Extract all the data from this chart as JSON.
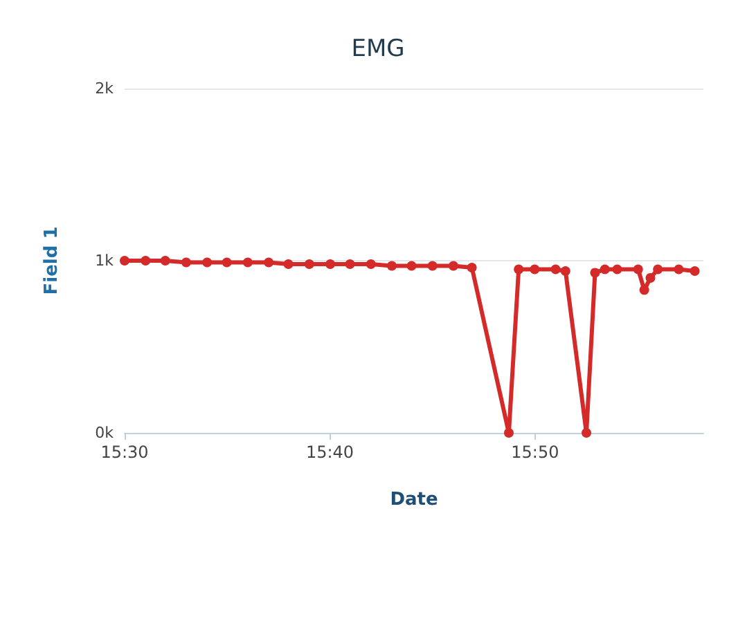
{
  "chart_data": {
    "type": "line",
    "title": "EMG",
    "xlabel": "Date",
    "ylabel": "Field 1",
    "x": [
      15.5,
      15.517,
      15.533,
      15.55,
      15.567,
      15.583,
      15.6,
      15.617,
      15.633,
      15.65,
      15.667,
      15.683,
      15.7,
      15.717,
      15.733,
      15.75,
      15.767,
      15.782,
      15.812,
      15.82,
      15.833,
      15.85,
      15.858,
      15.875,
      15.882,
      15.89,
      15.9,
      15.917,
      15.922,
      15.927,
      15.933,
      15.95,
      15.963
    ],
    "series": [
      {
        "color": "#d42a2a",
        "values": [
          1000,
          1000,
          1000,
          990,
          990,
          990,
          990,
          990,
          980,
          980,
          980,
          980,
          980,
          970,
          970,
          970,
          970,
          960,
          0,
          950,
          950,
          950,
          940,
          0,
          930,
          950,
          950,
          950,
          830,
          900,
          950,
          950,
          940
        ]
      }
    ],
    "xlim": [
      15.5,
      15.97
    ],
    "xticks": [
      {
        "value": 15.5,
        "label": "15:30"
      },
      {
        "value": 15.6667,
        "label": "15:40"
      },
      {
        "value": 15.8333,
        "label": "15:50"
      }
    ],
    "ylim": [
      0,
      2000
    ],
    "yticks": [
      {
        "value": 0,
        "label": "0k"
      },
      {
        "value": 1000,
        "label": "1k"
      },
      {
        "value": 2000,
        "label": "2k"
      }
    ],
    "grid": "y",
    "marker": "circle",
    "line_style": "solid"
  }
}
